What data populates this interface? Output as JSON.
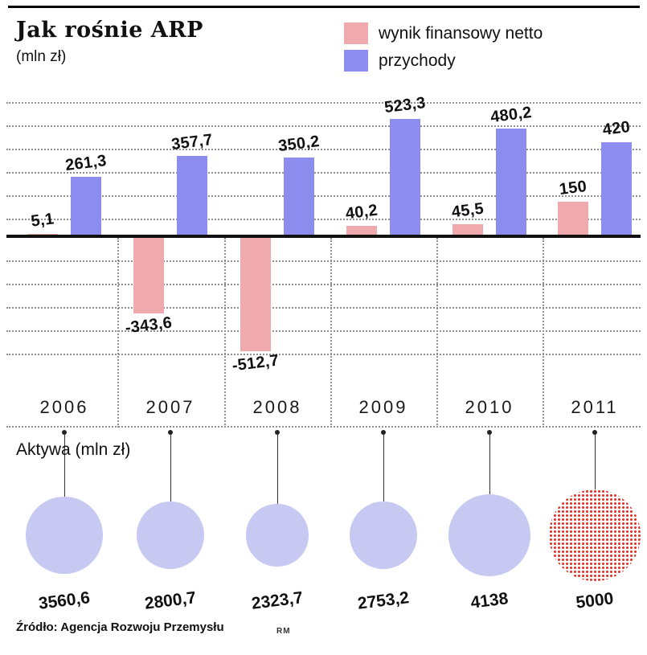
{
  "title": "Jak rośnie ARP",
  "subtitle": "(mln zł)",
  "legend": [
    {
      "label": "wynik finansowy netto",
      "color": "#f0a9ad"
    },
    {
      "label": "przychody",
      "color": "#8d8df0"
    }
  ],
  "aktywa_title": "Aktywa (mln zł)",
  "source": "Źródło: Agencja Rozwoju Przemysłu",
  "credit": "RM",
  "colors": {
    "pink": "#f0a9ad",
    "purple": "#8d8df0",
    "bubble": "#c7c9f3",
    "forecast_red": "#e23125",
    "axis": "#111111"
  },
  "chart_data": [
    {
      "type": "bar",
      "title": "Jak rośnie ARP (mln zł)",
      "categories": [
        "2006",
        "2007",
        "2008",
        "2009",
        "2010",
        "2011"
      ],
      "series": [
        {
          "name": "wynik finansowy netto",
          "color": "#f0a9ad",
          "values": [
            5.1,
            -343.6,
            -512.7,
            40.2,
            45.5,
            150
          ],
          "labels": [
            "5,1",
            "-343,6",
            "-512,7",
            "40,2",
            "45,5",
            "150"
          ]
        },
        {
          "name": "przychody",
          "color": "#8d8df0",
          "values": [
            261.3,
            357.7,
            350.2,
            523.3,
            480.2,
            420
          ],
          "labels": [
            "261,3",
            "357,7",
            "350,2",
            "523,3",
            "480,2",
            "420"
          ]
        }
      ],
      "ylim": [
        -560,
        560
      ],
      "grid": "dotted-horizontal",
      "legend_position": "top-right"
    },
    {
      "type": "bubble",
      "title": "Aktywa (mln zł)",
      "categories": [
        "2006",
        "2007",
        "2008",
        "2009",
        "2010",
        "2011"
      ],
      "values": [
        3560.6,
        2800.7,
        2323.7,
        2753.2,
        4138,
        5000
      ],
      "labels": [
        "3560,6",
        "2800,7",
        "2323,7",
        "2753,2",
        "4138",
        "5000"
      ],
      "highlight_index": 5,
      "highlight_style": "red-dotted-forecast"
    }
  ]
}
